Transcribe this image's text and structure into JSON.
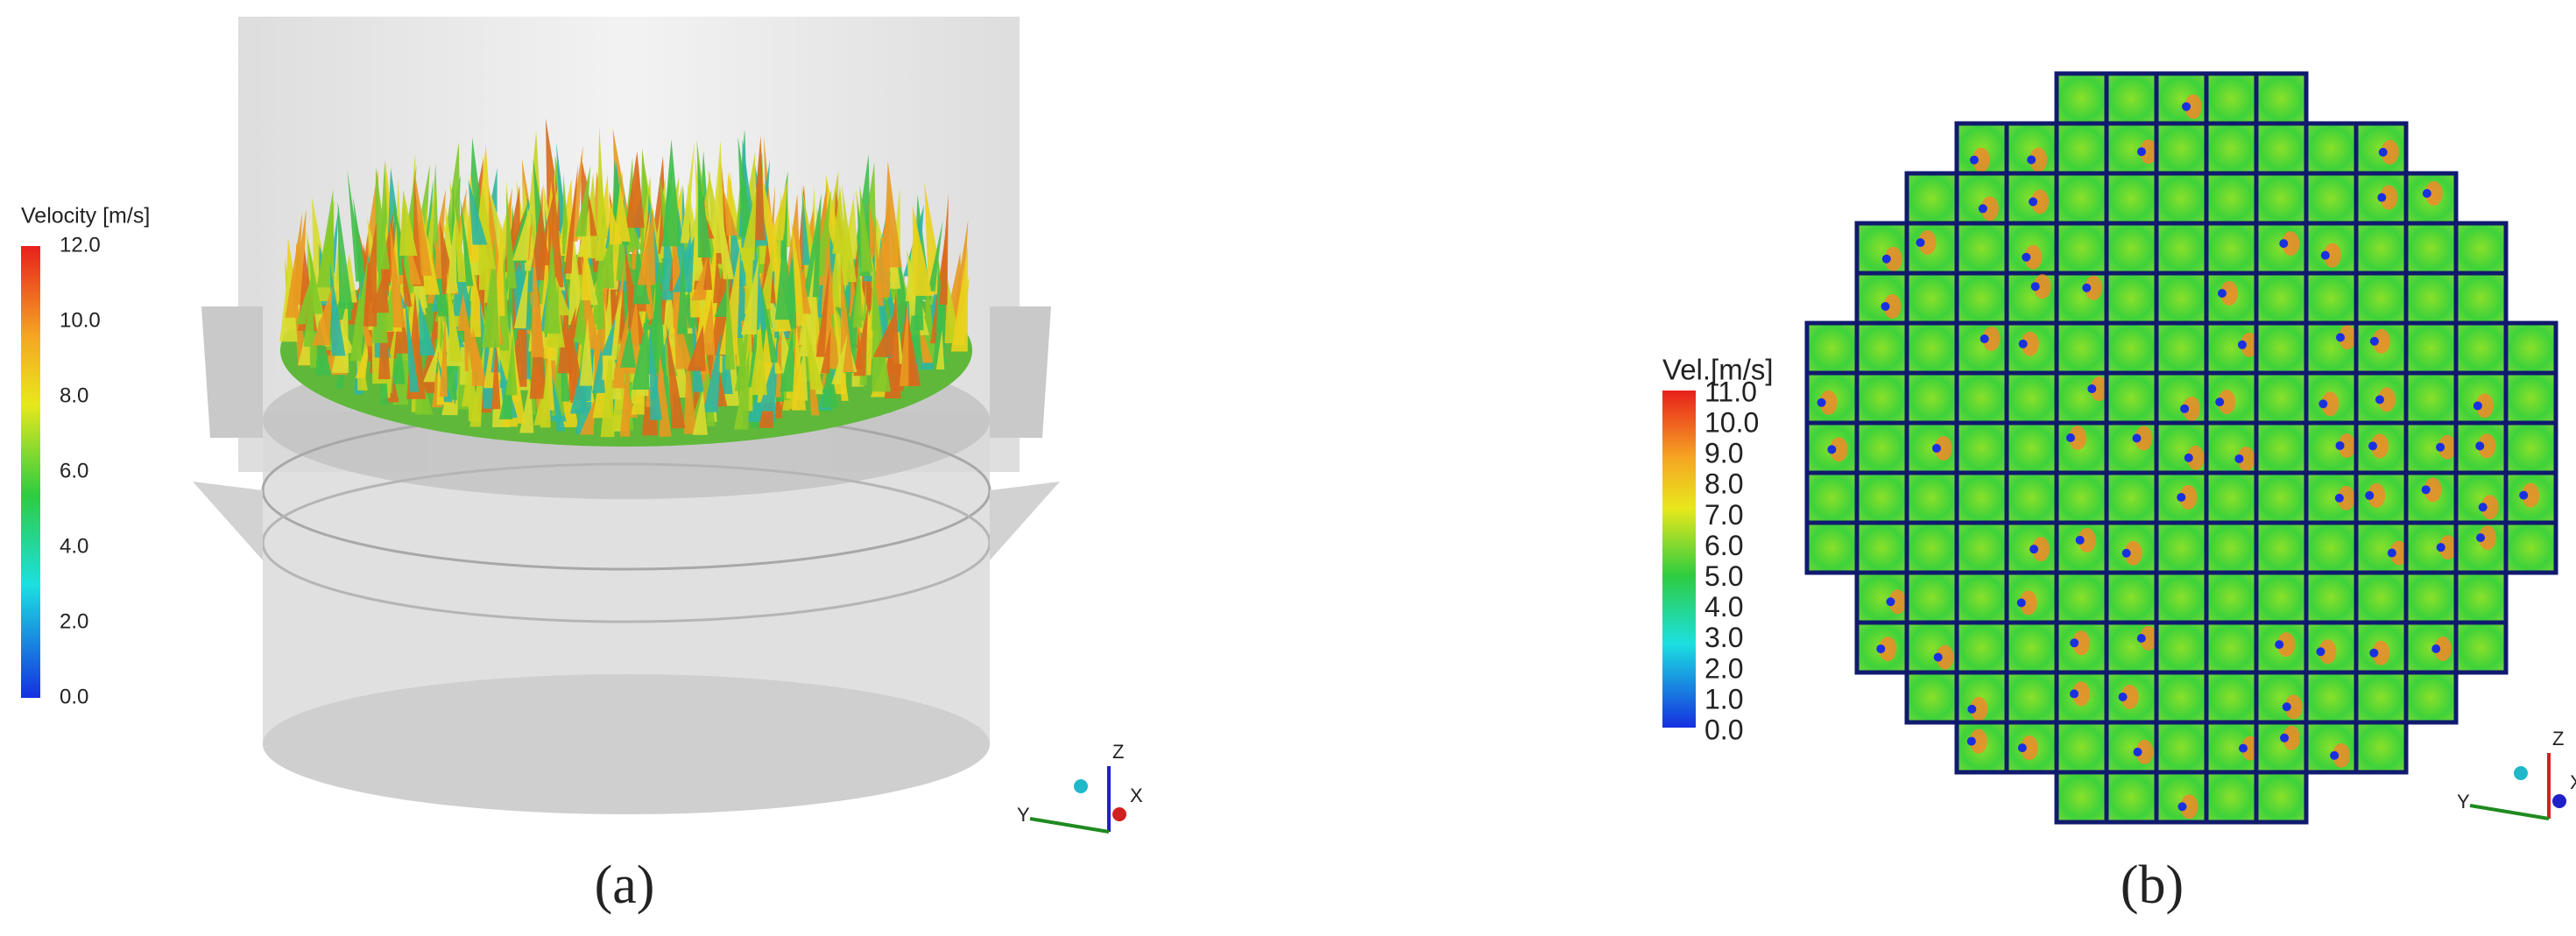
{
  "panels": [
    {
      "label": "(a)",
      "legend": {
        "title": "Velocity [m/s]",
        "ticks": [
          "12.0",
          "10.0",
          "8.0",
          "6.0",
          "4.0",
          "2.0",
          "0.0"
        ]
      },
      "axes": {
        "z": "Z",
        "y": "Y",
        "x": "X"
      }
    },
    {
      "label": "(b)",
      "legend": {
        "title": "Vel.[m/s]",
        "ticks": [
          "11.0",
          "10.0",
          "9.0",
          "8.0",
          "7.0",
          "6.0",
          "5.0",
          "4.0",
          "3.0",
          "2.0",
          "1.0",
          "0.0"
        ]
      },
      "axes": {
        "z": "Z",
        "y": "Y",
        "x": "X"
      }
    }
  ]
}
